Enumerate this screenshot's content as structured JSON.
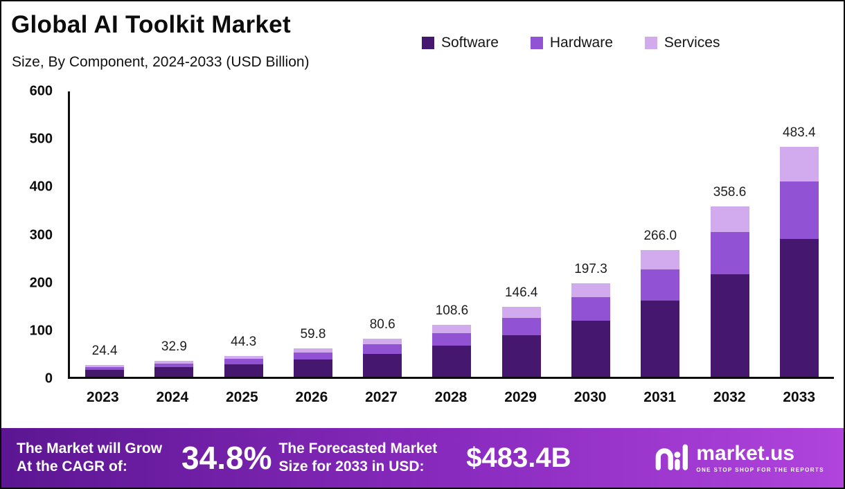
{
  "title": "Global AI Toolkit Market",
  "subtitle": "Size, By Component, 2024-2033 (USD Billion)",
  "legend": [
    {
      "label": "Software",
      "color": "#45176f"
    },
    {
      "label": "Hardware",
      "color": "#9152d3"
    },
    {
      "label": "Services",
      "color": "#d1abee"
    }
  ],
  "chart_data": {
    "type": "bar",
    "stacked": true,
    "title": "Global AI Toolkit Market Size, By Component, 2024-2033 (USD Billion)",
    "categories": [
      "2023",
      "2024",
      "2025",
      "2026",
      "2027",
      "2028",
      "2029",
      "2030",
      "2031",
      "2032",
      "2033"
    ],
    "totals": [
      24.4,
      32.9,
      44.3,
      59.8,
      80.6,
      108.6,
      146.4,
      197.3,
      266.0,
      358.6,
      483.4
    ],
    "total_labels": [
      "24.4",
      "32.9",
      "44.3",
      "59.8",
      "80.6",
      "108.6",
      "146.4",
      "197.3",
      "266.0",
      "358.6",
      "483.4"
    ],
    "series": [
      {
        "name": "Software",
        "color": "#45176f",
        "values": [
          14.6,
          19.7,
          26.6,
          35.9,
          48.4,
          65.2,
          87.8,
          118.4,
          159.6,
          215.2,
          290.0
        ]
      },
      {
        "name": "Hardware",
        "color": "#9152d3",
        "values": [
          6.1,
          8.2,
          11.1,
          15.0,
          20.2,
          27.2,
          36.6,
          49.3,
          66.5,
          89.7,
          120.9
        ]
      },
      {
        "name": "Services",
        "color": "#d1abee",
        "values": [
          3.7,
          5.0,
          6.6,
          8.9,
          12.0,
          16.2,
          22.0,
          29.6,
          39.9,
          53.7,
          72.5
        ]
      }
    ],
    "ylim": [
      0,
      600
    ],
    "yticks": [
      0,
      100,
      200,
      300,
      400,
      500,
      600
    ],
    "legend_position": "top-right",
    "grid": false
  },
  "footer": {
    "left_line1": "The Market will Grow",
    "left_line2": "At the CAGR of:",
    "cagr": "34.8%",
    "mid_line1": "The Forecasted Market",
    "mid_line2": "Size for 2033 in USD:",
    "forecast": "$483.4B",
    "brand": "market.us",
    "brand_tagline": "ONE STOP SHOP FOR THE REPORTS"
  }
}
